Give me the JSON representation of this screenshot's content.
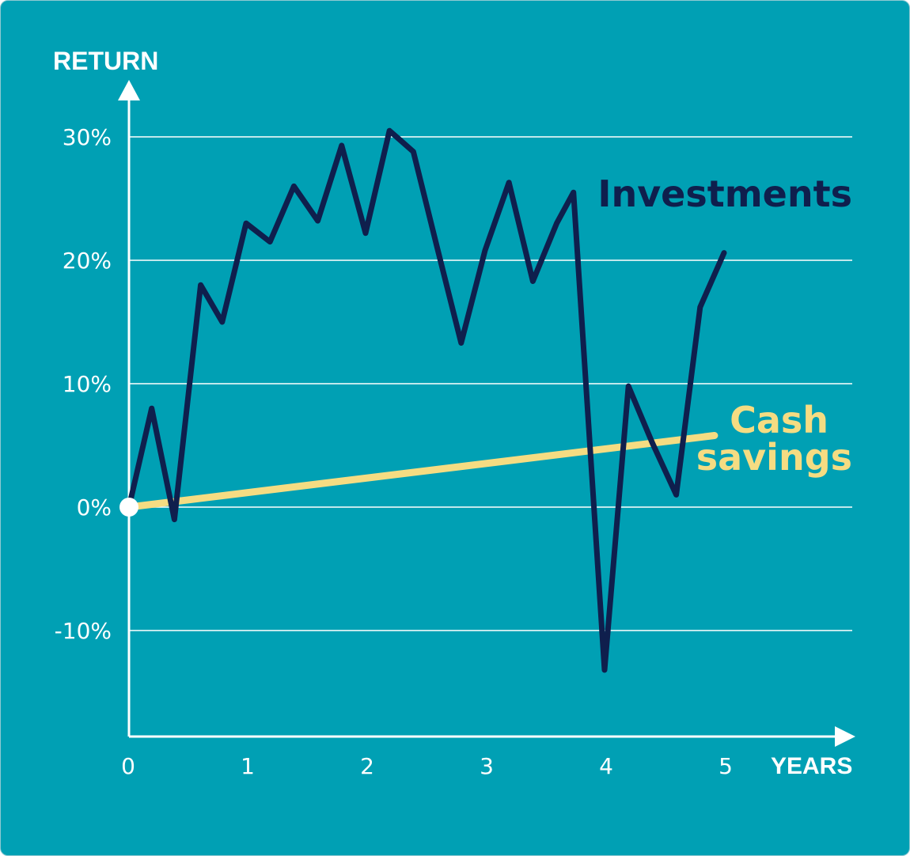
{
  "chart_data": {
    "type": "line",
    "title": "",
    "xlabel": "YEARS",
    "ylabel": "RETURN",
    "xlim": [
      0,
      5
    ],
    "ylim": [
      -15,
      30
    ],
    "x_ticks": [
      {
        "value": 0,
        "label": "0"
      },
      {
        "value": 1,
        "label": "1"
      },
      {
        "value": 2,
        "label": "2"
      },
      {
        "value": 3,
        "label": "3"
      },
      {
        "value": 4,
        "label": "4"
      },
      {
        "value": 5,
        "label": "5"
      }
    ],
    "y_ticks": [
      {
        "value": 30,
        "label": "30%"
      },
      {
        "value": 20,
        "label": "20%"
      },
      {
        "value": 10,
        "label": "10%"
      },
      {
        "value": 0,
        "label": "0%"
      },
      {
        "value": -10,
        "label": "-10%"
      }
    ],
    "grid": true,
    "colors": {
      "background": "#00a0b4",
      "grid": "#ffffff",
      "investments": "#0f1f4d",
      "cash": "#f5dc82",
      "origin_marker": "#ffffff"
    },
    "series": [
      {
        "name": "Investments",
        "label_lines": [
          "Investments"
        ],
        "color": "#0f1f4d",
        "points": [
          [
            0,
            0
          ],
          [
            0.19,
            8
          ],
          [
            0.38,
            -1
          ],
          [
            0.6,
            18
          ],
          [
            0.78,
            15
          ],
          [
            0.98,
            23
          ],
          [
            1.18,
            21.5
          ],
          [
            1.38,
            26
          ],
          [
            1.58,
            23.2
          ],
          [
            1.78,
            29.3
          ],
          [
            1.98,
            22.2
          ],
          [
            2.18,
            30.5
          ],
          [
            2.38,
            28.8
          ],
          [
            2.58,
            21
          ],
          [
            2.78,
            13.3
          ],
          [
            2.98,
            20.8
          ],
          [
            3.18,
            26.3
          ],
          [
            3.38,
            18.3
          ],
          [
            3.58,
            23
          ],
          [
            3.72,
            25.5
          ],
          [
            3.98,
            -13.2
          ],
          [
            4.18,
            9.8
          ],
          [
            4.38,
            5.2
          ],
          [
            4.58,
            1
          ],
          [
            4.78,
            16.2
          ],
          [
            4.98,
            20.6
          ]
        ]
      },
      {
        "name": "Cash savings",
        "label_lines": [
          "Cash",
          "savings"
        ],
        "color": "#f5dc82",
        "points": [
          [
            0,
            0
          ],
          [
            4.9,
            5.8
          ]
        ]
      }
    ]
  }
}
